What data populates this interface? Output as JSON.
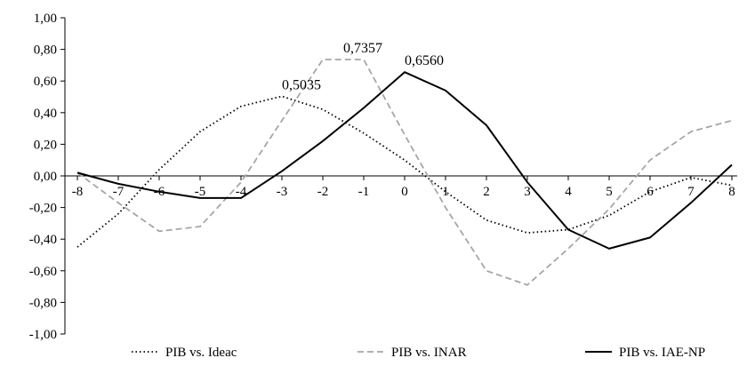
{
  "chart_data": {
    "type": "line",
    "x": [
      -8,
      -7,
      -6,
      -5,
      -4,
      -3,
      -2,
      -1,
      0,
      1,
      2,
      3,
      4,
      5,
      6,
      7,
      8
    ],
    "x_tick_labels": [
      "-8",
      "-7",
      "-6",
      "-5",
      "-4",
      "-3",
      "-2",
      "-1",
      "0",
      "1",
      "2",
      "3",
      "4",
      "5",
      "6",
      "7",
      "8"
    ],
    "ylim": [
      -1.0,
      1.0
    ],
    "y_ticks": [
      1.0,
      0.8,
      0.6,
      0.4,
      0.2,
      0.0,
      -0.2,
      -0.4,
      -0.6,
      -0.8,
      -1.0
    ],
    "y_tick_labels": [
      "1,00",
      "0,80",
      "0,60",
      "0,40",
      "0,20",
      "0,00",
      "-0,20",
      "-0,40",
      "-0,60",
      "-0,80",
      "-1,00"
    ],
    "grid": false,
    "legend_position": "bottom",
    "series": [
      {
        "name": "PIB vs. Ideac",
        "style": "dotted",
        "color": "#000000",
        "values": [
          -0.45,
          -0.24,
          0.04,
          0.28,
          0.44,
          0.5035,
          0.42,
          0.27,
          0.1,
          -0.1,
          -0.28,
          -0.36,
          -0.34,
          -0.25,
          -0.1,
          -0.01,
          -0.06
        ]
      },
      {
        "name": "PIB vs. INAR",
        "style": "dashed",
        "color": "#a6a6a6",
        "values": [
          0.02,
          -0.17,
          -0.35,
          -0.32,
          -0.04,
          0.35,
          0.7357,
          0.7357,
          0.26,
          -0.2,
          -0.6,
          -0.69,
          -0.46,
          -0.21,
          0.1,
          0.28,
          0.35
        ]
      },
      {
        "name": "PIB vs. IAE-NP",
        "style": "solid",
        "color": "#000000",
        "values": [
          0.02,
          -0.05,
          -0.1,
          -0.14,
          -0.14,
          0.03,
          0.22,
          0.43,
          0.656,
          0.54,
          0.32,
          -0.04,
          -0.34,
          -0.46,
          -0.39,
          -0.17,
          0.07
        ]
      }
    ],
    "annotations": [
      {
        "label": "0,5035",
        "series": 0,
        "x": -3
      },
      {
        "label": "0,7357",
        "series": 1,
        "x": -1.5
      },
      {
        "label": "0,6560",
        "series": 2,
        "x": 0
      }
    ]
  }
}
